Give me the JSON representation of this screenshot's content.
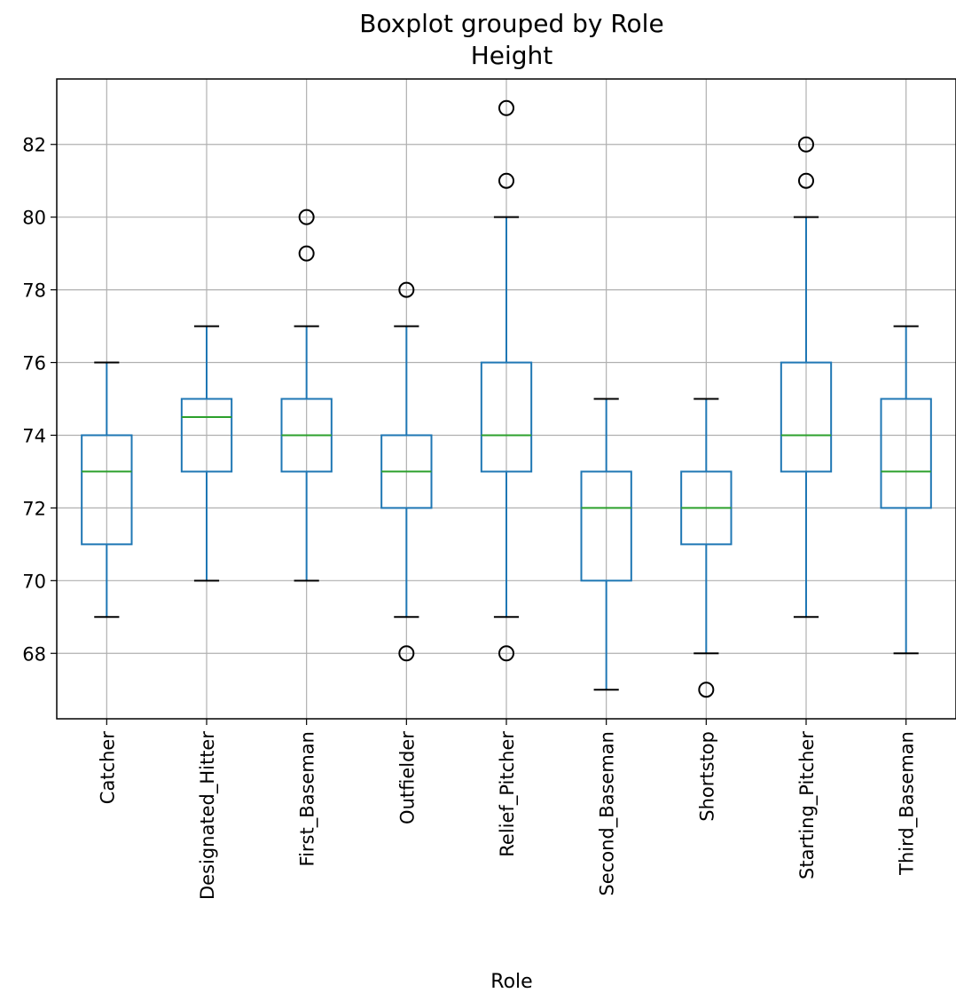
{
  "chart_data": {
    "type": "boxplot",
    "title": "Boxplot grouped by Role",
    "subtitle": "Height",
    "xlabel": "Role",
    "ylabel": "",
    "ylim": [
      66.2,
      83.8
    ],
    "yticks": [
      68,
      70,
      72,
      74,
      76,
      78,
      80,
      82
    ],
    "grid": true,
    "colors": {
      "box": "#1f77b4",
      "median": "#2ca02c",
      "cap": "#000000",
      "flier": "#000000",
      "grid": "#b0b0b0"
    },
    "categories": [
      "Catcher",
      "Designated_Hitter",
      "First_Baseman",
      "Outfielder",
      "Relief_Pitcher",
      "Second_Baseman",
      "Shortstop",
      "Starting_Pitcher",
      "Third_Baseman"
    ],
    "boxes": [
      {
        "category": "Catcher",
        "whislo": 69,
        "q1": 71,
        "med": 73,
        "q3": 74,
        "whishi": 76,
        "fliers": []
      },
      {
        "category": "Designated_Hitter",
        "whislo": 70,
        "q1": 73,
        "med": 74.5,
        "q3": 75,
        "whishi": 77,
        "fliers": []
      },
      {
        "category": "First_Baseman",
        "whislo": 70,
        "q1": 73,
        "med": 74,
        "q3": 75,
        "whishi": 77,
        "fliers": [
          79,
          80
        ]
      },
      {
        "category": "Outfielder",
        "whislo": 69,
        "q1": 72,
        "med": 73,
        "q3": 74,
        "whishi": 77,
        "fliers": [
          68,
          78
        ]
      },
      {
        "category": "Relief_Pitcher",
        "whislo": 69,
        "q1": 73,
        "med": 74,
        "q3": 76,
        "whishi": 80,
        "fliers": [
          68,
          81,
          83
        ]
      },
      {
        "category": "Second_Baseman",
        "whislo": 67,
        "q1": 70,
        "med": 72,
        "q3": 73,
        "whishi": 75,
        "fliers": []
      },
      {
        "category": "Shortstop",
        "whislo": 68,
        "q1": 71,
        "med": 72,
        "q3": 73,
        "whishi": 75,
        "fliers": [
          67
        ]
      },
      {
        "category": "Starting_Pitcher",
        "whislo": 69,
        "q1": 73,
        "med": 74,
        "q3": 76,
        "whishi": 80,
        "fliers": [
          81,
          82
        ]
      },
      {
        "category": "Third_Baseman",
        "whislo": 68,
        "q1": 72,
        "med": 73,
        "q3": 75,
        "whishi": 77,
        "fliers": []
      }
    ]
  }
}
